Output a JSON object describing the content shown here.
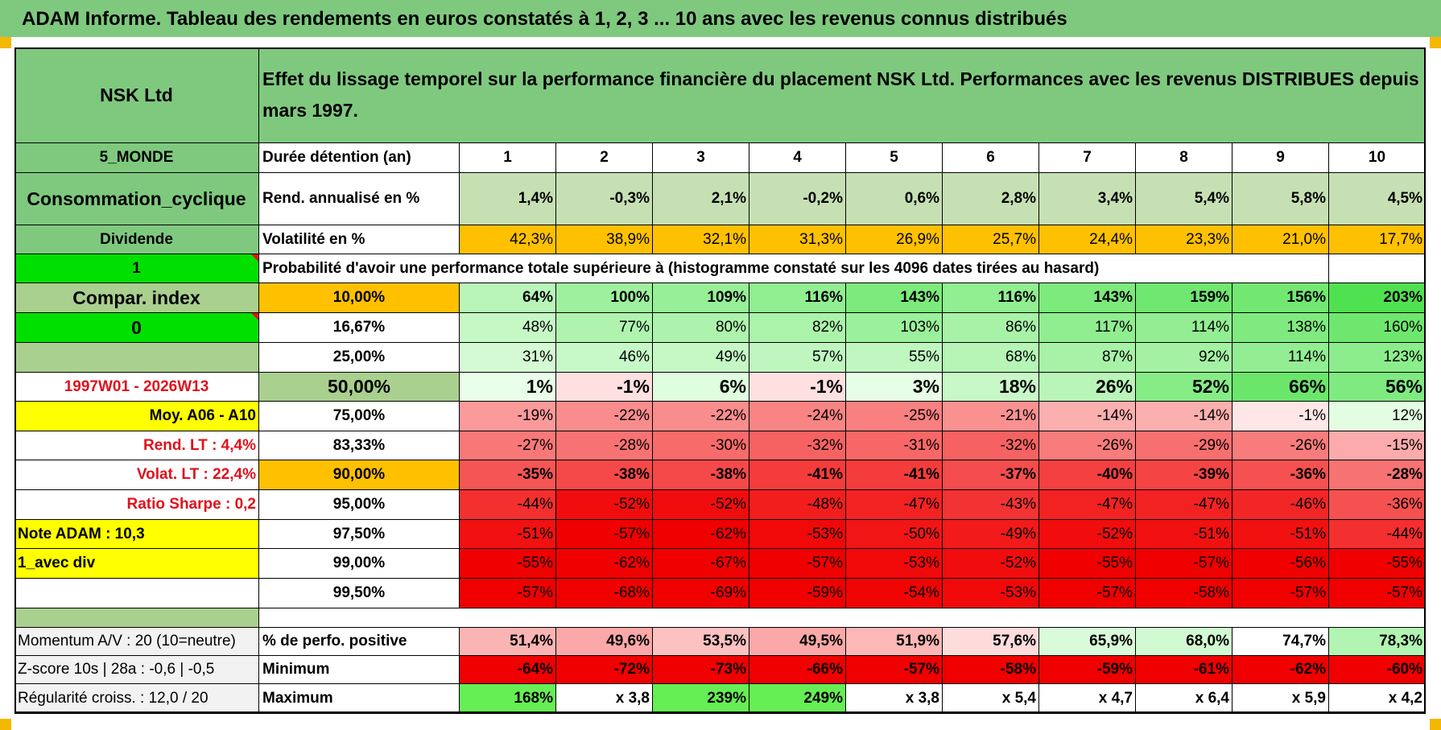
{
  "header": {
    "title": "ADAM Informe. Tableau des rendements en euros constatés à 1, 2, 3 ... 10 ans avec les revenus connus distribués"
  },
  "table": {
    "headers": [
      "1",
      "2",
      "3",
      "4",
      "5",
      "6",
      "7",
      "8",
      "9",
      "10"
    ],
    "left": {
      "name": "NSK Ltd",
      "region": "5_MONDE",
      "sector": "Consommation_cyclique",
      "income": "Dividende",
      "flag1": "1",
      "compar_index": "Compar. index",
      "flag0": "0",
      "period": "1997W01 - 2026W13",
      "moy": "Moy. A06 - A10",
      "rend_lt": "Rend. LT :    4,4%",
      "volat_lt": "Volat. LT :    22,4%",
      "sharpe": "Ratio Sharpe :    0,2",
      "note": "Note ADAM : 10,3",
      "avec_div": "1_avec div",
      "momentum": "Momentum A/V : 20 (10=neutre)",
      "zscore": "Z-score 10s | 28a : -0,6 | -0,5",
      "regularite": "Régularité croiss. : 12,0 / 20"
    },
    "description": "Effet du lissage temporel sur la performance financière du placement NSK Ltd. Performances avec les revenus DISTRIBUES depuis mars 1997.",
    "duree_label": "Durée détention (an)",
    "rend_label": "Rend. annualisé en %",
    "rend_values": [
      "1,4%",
      "-0,3%",
      "2,1%",
      "-0,2%",
      "0,6%",
      "2,8%",
      "3,4%",
      "5,4%",
      "5,8%",
      "4,5%"
    ],
    "vol_label": "Volatilité en %",
    "vol_values": [
      "42,3%",
      "38,9%",
      "32,1%",
      "31,3%",
      "26,9%",
      "25,7%",
      "24,4%",
      "23,3%",
      "21,0%",
      "17,7%"
    ],
    "proba_label": "Probabilité d'avoir une performance totale supérieure à (histogramme constaté sur les 4096 dates tirées au hasard)",
    "quantiles": [
      {
        "label": "10,00%",
        "values": [
          "64%",
          "100%",
          "109%",
          "116%",
          "143%",
          "116%",
          "143%",
          "159%",
          "156%",
          "203%"
        ]
      },
      {
        "label": "16,67%",
        "values": [
          "48%",
          "77%",
          "80%",
          "82%",
          "103%",
          "86%",
          "117%",
          "114%",
          "138%",
          "160%"
        ]
      },
      {
        "label": "25,00%",
        "values": [
          "31%",
          "46%",
          "49%",
          "57%",
          "55%",
          "68%",
          "87%",
          "92%",
          "114%",
          "123%"
        ]
      },
      {
        "label": "50,00%",
        "values": [
          "1%",
          "-1%",
          "6%",
          "-1%",
          "3%",
          "18%",
          "26%",
          "52%",
          "66%",
          "56%"
        ]
      },
      {
        "label": "75,00%",
        "values": [
          "-19%",
          "-22%",
          "-22%",
          "-24%",
          "-25%",
          "-21%",
          "-14%",
          "-14%",
          "-1%",
          "12%"
        ]
      },
      {
        "label": "83,33%",
        "values": [
          "-27%",
          "-28%",
          "-30%",
          "-32%",
          "-31%",
          "-32%",
          "-26%",
          "-29%",
          "-26%",
          "-15%"
        ]
      },
      {
        "label": "90,00%",
        "values": [
          "-35%",
          "-38%",
          "-38%",
          "-41%",
          "-41%",
          "-37%",
          "-40%",
          "-39%",
          "-36%",
          "-28%"
        ]
      },
      {
        "label": "95,00%",
        "values": [
          "-44%",
          "-52%",
          "-52%",
          "-48%",
          "-47%",
          "-43%",
          "-47%",
          "-47%",
          "-46%",
          "-36%"
        ]
      },
      {
        "label": "97,50%",
        "values": [
          "-51%",
          "-57%",
          "-62%",
          "-53%",
          "-50%",
          "-49%",
          "-52%",
          "-51%",
          "-51%",
          "-44%"
        ]
      },
      {
        "label": "99,00%",
        "values": [
          "-55%",
          "-62%",
          "-67%",
          "-57%",
          "-53%",
          "-52%",
          "-55%",
          "-57%",
          "-56%",
          "-55%"
        ]
      },
      {
        "label": "99,50%",
        "values": [
          "-57%",
          "-68%",
          "-69%",
          "-59%",
          "-54%",
          "-53%",
          "-57%",
          "-58%",
          "-57%",
          "-57%"
        ]
      }
    ],
    "pos_label": "% de perfo. positive",
    "pos_values": [
      "51,4%",
      "49,6%",
      "53,5%",
      "49,5%",
      "51,9%",
      "57,6%",
      "65,9%",
      "68,0%",
      "74,7%",
      "78,3%"
    ],
    "min_label": "Minimum",
    "min_values": [
      "-64%",
      "-72%",
      "-73%",
      "-66%",
      "-57%",
      "-58%",
      "-59%",
      "-61%",
      "-62%",
      "-60%"
    ],
    "max_label": "Maximum",
    "max_values": [
      "168%",
      "x 3,8",
      "239%",
      "249%",
      "x 3,8",
      "x 5,4",
      "x 4,7",
      "x 6,4",
      "x 5,9",
      "x 4,2"
    ]
  },
  "colors": {
    "header_green": "#7fc97f",
    "bright_green": "#00e000",
    "orange": "#ffc000",
    "yellow": "#ffff00",
    "red_text": "#e0111b"
  }
}
